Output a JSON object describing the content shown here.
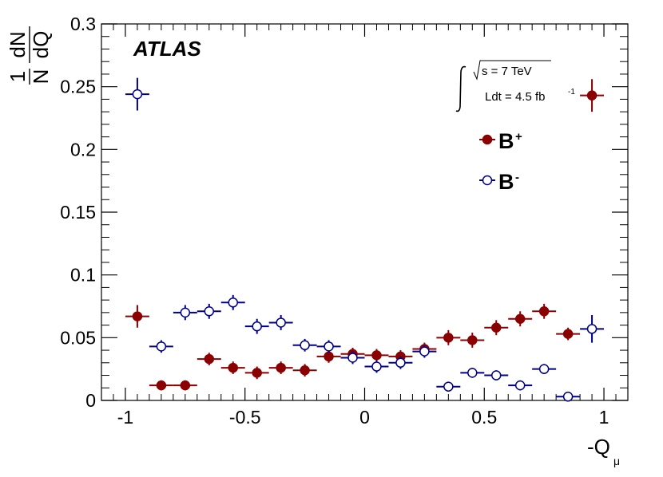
{
  "chart_data": {
    "type": "scatter",
    "brand": "ATLAS",
    "xlabel": "-Q",
    "xlabel_sub": "μ",
    "ylabel": {
      "num_left": "1",
      "den_left": "N",
      "num_right": "dN",
      "den_right": "dQ"
    },
    "xlim": [
      -1.1,
      1.1
    ],
    "ylim": [
      0,
      0.3
    ],
    "x_ticks": [
      -1,
      -0.5,
      0,
      0.5,
      1
    ],
    "x_tick_labels": [
      "-1",
      "-0.5",
      "0",
      "0.5",
      "1"
    ],
    "y_ticks": [
      0,
      0.05,
      0.1,
      0.15,
      0.2,
      0.25,
      0.3
    ],
    "y_tick_labels": [
      "0",
      "0.05",
      "0.1",
      "0.15",
      "0.2",
      "0.25",
      "0.3"
    ],
    "bin_half_width": 0.05,
    "annotation": {
      "sqrt_s": "s = 7 TeV",
      "lumi_text": "Ldt = 4.5 fb",
      "lumi_exponent": "-1"
    },
    "series": [
      {
        "name": "B",
        "superscript": "+",
        "color": "#8b0000",
        "marker": "filled-circle",
        "x": [
          -0.95,
          -0.85,
          -0.75,
          -0.65,
          -0.55,
          -0.45,
          -0.35,
          -0.25,
          -0.15,
          -0.05,
          0.05,
          0.15,
          0.25,
          0.35,
          0.45,
          0.55,
          0.65,
          0.75,
          0.85,
          0.95
        ],
        "y": [
          0.067,
          0.012,
          0.012,
          0.033,
          0.026,
          0.022,
          0.026,
          0.024,
          0.035,
          0.037,
          0.036,
          0.035,
          0.041,
          0.05,
          0.048,
          0.058,
          0.065,
          0.071,
          0.053,
          0.243
        ],
        "yerr": [
          0.009,
          0.004,
          0.004,
          0.005,
          0.005,
          0.005,
          0.005,
          0.005,
          0.005,
          0.005,
          0.005,
          0.005,
          0.005,
          0.006,
          0.006,
          0.006,
          0.006,
          0.006,
          0.005,
          0.013
        ]
      },
      {
        "name": "B",
        "superscript": "-",
        "color": "#00008b",
        "marker": "open-circle",
        "x": [
          -0.95,
          -0.85,
          -0.75,
          -0.65,
          -0.55,
          -0.45,
          -0.35,
          -0.25,
          -0.15,
          -0.05,
          0.05,
          0.15,
          0.25,
          0.35,
          0.45,
          0.55,
          0.65,
          0.75,
          0.85,
          0.95
        ],
        "y": [
          0.244,
          0.043,
          0.07,
          0.071,
          0.078,
          0.059,
          0.062,
          0.044,
          0.043,
          0.034,
          0.027,
          0.03,
          0.039,
          0.011,
          0.022,
          0.02,
          0.012,
          0.025,
          0.003,
          0.057
        ],
        "yerr": [
          0.013,
          0.005,
          0.006,
          0.006,
          0.006,
          0.006,
          0.006,
          0.005,
          0.005,
          0.005,
          0.005,
          0.005,
          0.005,
          0.004,
          0.004,
          0.004,
          0.004,
          0.004,
          0.002,
          0.011
        ]
      }
    ]
  }
}
